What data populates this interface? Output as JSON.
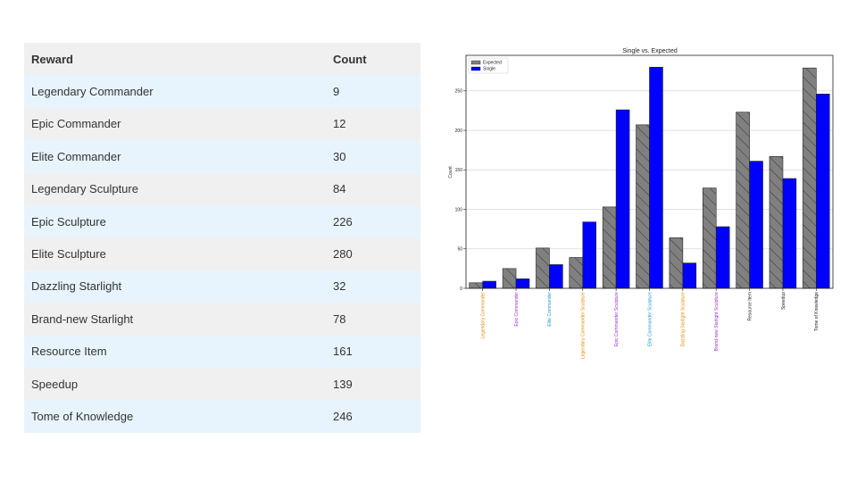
{
  "table": {
    "headers": {
      "reward": "Reward",
      "count": "Count"
    },
    "rows": [
      {
        "reward": "Legendary Commander",
        "count": "9"
      },
      {
        "reward": "Epic Commander",
        "count": "12"
      },
      {
        "reward": "Elite Commander",
        "count": "30"
      },
      {
        "reward": "Legendary Sculpture",
        "count": "84"
      },
      {
        "reward": "Epic Sculpture",
        "count": "226"
      },
      {
        "reward": "Elite Sculpture",
        "count": "280"
      },
      {
        "reward": "Dazzling Starlight",
        "count": "32"
      },
      {
        "reward": "Brand-new Starlight",
        "count": "78"
      },
      {
        "reward": "Resource Item",
        "count": "161"
      },
      {
        "reward": "Speedup",
        "count": "139"
      },
      {
        "reward": "Tome of Knowledge",
        "count": "246"
      }
    ]
  },
  "chart_data": {
    "type": "bar",
    "title": "Single vs. Expected",
    "xlabel": "",
    "ylabel": "Count",
    "ylim": [
      0,
      295
    ],
    "yticks": [
      0,
      50,
      100,
      150,
      200,
      250
    ],
    "grid": "horizontal",
    "legend_position": "top-left",
    "categories": [
      "Legendary Commander",
      "Epic Commander",
      "Elite Commander",
      "Legendary Commander Sculpture",
      "Epic Commander Sculpture",
      "Elite Commander Sculpture",
      "Dazzling Starlight Sculpture",
      "Brand-new Starlight Sculpture",
      "Resource Item",
      "Speedup",
      "Tome of Knowledge"
    ],
    "category_colors": [
      "#e08a00",
      "#9b30d9",
      "#2299cc",
      "#e08a00",
      "#9b30d9",
      "#2299cc",
      "#e08a00",
      "#9b30d9",
      "#222222",
      "#222222",
      "#222222"
    ],
    "series": [
      {
        "name": "Expected",
        "color": "#808080",
        "hatch": true,
        "values": [
          7,
          25,
          51,
          39,
          103,
          207,
          64,
          127,
          223,
          167,
          279
        ]
      },
      {
        "name": "Single",
        "color": "#0000ff",
        "hatch": false,
        "values": [
          9,
          12,
          30,
          84,
          226,
          280,
          32,
          78,
          161,
          139,
          246
        ]
      }
    ]
  }
}
